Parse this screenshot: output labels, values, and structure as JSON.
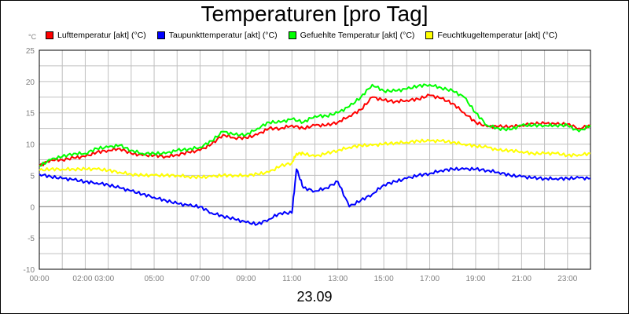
{
  "chart_data": {
    "type": "line",
    "title": "Temperaturen [pro Tag]",
    "unit": "°C",
    "x_label": "23.09",
    "xlim": [
      0,
      24
    ],
    "ylim": [
      -10,
      25
    ],
    "grid": true,
    "legend_position": "top",
    "x_ticks": [
      "00:00",
      "02:00 03:00",
      "05:00",
      "07:00",
      "09:00",
      "11:00",
      "13:00",
      "15:00",
      "17:00",
      "19:00",
      "21:00",
      "23:00"
    ],
    "y_ticks": [
      25,
      20,
      15,
      10,
      5,
      0,
      -5,
      -10
    ],
    "series": [
      {
        "name": "Lufttemperatur [akt] (°C)",
        "color": "#ff0000",
        "points": [
          [
            0,
            6.5
          ],
          [
            0.5,
            7.5
          ],
          [
            1,
            7.5
          ],
          [
            1.5,
            7.8
          ],
          [
            2,
            8
          ],
          [
            2.5,
            8.7
          ],
          [
            3,
            9
          ],
          [
            3.5,
            9.3
          ],
          [
            4,
            8.5
          ],
          [
            4.5,
            8.2
          ],
          [
            5,
            8.2
          ],
          [
            5.5,
            8
          ],
          [
            6,
            8.3
          ],
          [
            6.5,
            8.7
          ],
          [
            7,
            9
          ],
          [
            7.5,
            10
          ],
          [
            8,
            11.5
          ],
          [
            8.5,
            11
          ],
          [
            9,
            11
          ],
          [
            9.5,
            11.5
          ],
          [
            10,
            12.5
          ],
          [
            10.5,
            12.5
          ],
          [
            11,
            13
          ],
          [
            11.5,
            12.5
          ],
          [
            12,
            13
          ],
          [
            12.5,
            13
          ],
          [
            13,
            13.5
          ],
          [
            13.5,
            14.5
          ],
          [
            14,
            15.5
          ],
          [
            14.5,
            17.5
          ],
          [
            15,
            17
          ],
          [
            15.5,
            16.8
          ],
          [
            16,
            17
          ],
          [
            16.5,
            17.2
          ],
          [
            17,
            17.8
          ],
          [
            17.5,
            17.3
          ],
          [
            18,
            16.5
          ],
          [
            18.5,
            15
          ],
          [
            19,
            13.5
          ],
          [
            19.5,
            12.8
          ],
          [
            20,
            12.8
          ],
          [
            20.5,
            12.8
          ],
          [
            21,
            13
          ],
          [
            21.5,
            13.3
          ],
          [
            22,
            13.3
          ],
          [
            22.5,
            13.2
          ],
          [
            23,
            13.2
          ],
          [
            23.5,
            12.5
          ],
          [
            24,
            13
          ]
        ]
      },
      {
        "name": "Taupunkttemperatur [akt] (°C)",
        "color": "#0000ff",
        "points": [
          [
            0,
            5.2
          ],
          [
            0.5,
            4.8
          ],
          [
            1,
            4.5
          ],
          [
            1.5,
            4.3
          ],
          [
            2,
            4
          ],
          [
            2.5,
            3.8
          ],
          [
            3,
            3.5
          ],
          [
            3.5,
            3
          ],
          [
            4,
            2.5
          ],
          [
            4.5,
            2
          ],
          [
            5,
            1.5
          ],
          [
            5.5,
            1
          ],
          [
            6,
            0.5
          ],
          [
            6.5,
            0.2
          ],
          [
            7,
            0
          ],
          [
            7.5,
            -1
          ],
          [
            8,
            -1.5
          ],
          [
            8.5,
            -2
          ],
          [
            9,
            -2.5
          ],
          [
            9.5,
            -2.8
          ],
          [
            10,
            -2
          ],
          [
            10.5,
            -1
          ],
          [
            11,
            -1
          ],
          [
            11.2,
            6
          ],
          [
            11.5,
            3
          ],
          [
            12,
            2.5
          ],
          [
            12.5,
            3
          ],
          [
            13,
            4
          ],
          [
            13.5,
            0
          ],
          [
            14,
            1
          ],
          [
            14.5,
            2
          ],
          [
            15,
            3.5
          ],
          [
            15.5,
            4
          ],
          [
            16,
            4.5
          ],
          [
            16.5,
            5
          ],
          [
            17,
            5.3
          ],
          [
            17.5,
            5.8
          ],
          [
            18,
            6
          ],
          [
            18.5,
            6
          ],
          [
            19,
            6
          ],
          [
            19.5,
            5.8
          ],
          [
            20,
            5.5
          ],
          [
            20.5,
            5
          ],
          [
            21,
            4.8
          ],
          [
            21.5,
            4.6
          ],
          [
            22,
            4.5
          ],
          [
            22.5,
            4.5
          ],
          [
            23,
            4.5
          ],
          [
            23.5,
            4.6
          ],
          [
            24,
            4.5
          ]
        ]
      },
      {
        "name": "Gefuehlte Temperatur [akt] (°C)",
        "color": "#00ff00",
        "points": [
          [
            0,
            6.5
          ],
          [
            0.5,
            7.5
          ],
          [
            1,
            8
          ],
          [
            1.5,
            8.5
          ],
          [
            2,
            8.5
          ],
          [
            2.5,
            9.3
          ],
          [
            3,
            9.5
          ],
          [
            3.5,
            9.8
          ],
          [
            4,
            9
          ],
          [
            4.5,
            8.5
          ],
          [
            5,
            8.5
          ],
          [
            5.5,
            8.5
          ],
          [
            6,
            9
          ],
          [
            6.5,
            9.2
          ],
          [
            7,
            9.5
          ],
          [
            7.5,
            10.5
          ],
          [
            8,
            12
          ],
          [
            8.5,
            11.5
          ],
          [
            9,
            11.5
          ],
          [
            9.5,
            12.5
          ],
          [
            10,
            13.5
          ],
          [
            10.5,
            13.5
          ],
          [
            11,
            14
          ],
          [
            11.5,
            13.5
          ],
          [
            12,
            14.5
          ],
          [
            12.5,
            14.5
          ],
          [
            13,
            15
          ],
          [
            13.5,
            16
          ],
          [
            14,
            17.5
          ],
          [
            14.5,
            19.5
          ],
          [
            15,
            18.5
          ],
          [
            15.5,
            18.5
          ],
          [
            16,
            18.8
          ],
          [
            16.5,
            19.3
          ],
          [
            17,
            19.5
          ],
          [
            17.5,
            19
          ],
          [
            18,
            18.5
          ],
          [
            18.5,
            17.5
          ],
          [
            19,
            15
          ],
          [
            19.5,
            13
          ],
          [
            20,
            12.5
          ],
          [
            20.5,
            12.3
          ],
          [
            21,
            13
          ],
          [
            21.5,
            13
          ],
          [
            22,
            13
          ],
          [
            22.5,
            13
          ],
          [
            23,
            13
          ],
          [
            23.5,
            12
          ],
          [
            24,
            13
          ]
        ]
      },
      {
        "name": "Feuchtkugeltemperatur [akt] (°C)",
        "color": "#ffff00",
        "points": [
          [
            0,
            5.8
          ],
          [
            0.5,
            6
          ],
          [
            1,
            6
          ],
          [
            1.5,
            6
          ],
          [
            2,
            6
          ],
          [
            2.5,
            6
          ],
          [
            3,
            5.8
          ],
          [
            3.5,
            5.5
          ],
          [
            4,
            5.2
          ],
          [
            4.5,
            5
          ],
          [
            5,
            5
          ],
          [
            5.5,
            5
          ],
          [
            6,
            5
          ],
          [
            6.5,
            4.8
          ],
          [
            7,
            4.7
          ],
          [
            7.5,
            4.8
          ],
          [
            8,
            5
          ],
          [
            8.5,
            5
          ],
          [
            9,
            5
          ],
          [
            9.5,
            5.2
          ],
          [
            10,
            5.5
          ],
          [
            10.5,
            6.5
          ],
          [
            11,
            7
          ],
          [
            11.2,
            8.5
          ],
          [
            11.5,
            8.5
          ],
          [
            12,
            8
          ],
          [
            12.5,
            8.5
          ],
          [
            13,
            9
          ],
          [
            13.5,
            9.5
          ],
          [
            14,
            9.8
          ],
          [
            14.5,
            9.8
          ],
          [
            15,
            10
          ],
          [
            15.5,
            10.2
          ],
          [
            16,
            10.3
          ],
          [
            16.5,
            10.5
          ],
          [
            17,
            10.5
          ],
          [
            17.5,
            10.5
          ],
          [
            18,
            10.3
          ],
          [
            18.5,
            10
          ],
          [
            19,
            9.7
          ],
          [
            19.5,
            9.5
          ],
          [
            20,
            9
          ],
          [
            20.5,
            9
          ],
          [
            21,
            8.8
          ],
          [
            21.5,
            8.5
          ],
          [
            22,
            8.5
          ],
          [
            22.5,
            8.5
          ],
          [
            23,
            8.2
          ],
          [
            23.5,
            8.3
          ],
          [
            24,
            8.5
          ]
        ]
      }
    ]
  }
}
